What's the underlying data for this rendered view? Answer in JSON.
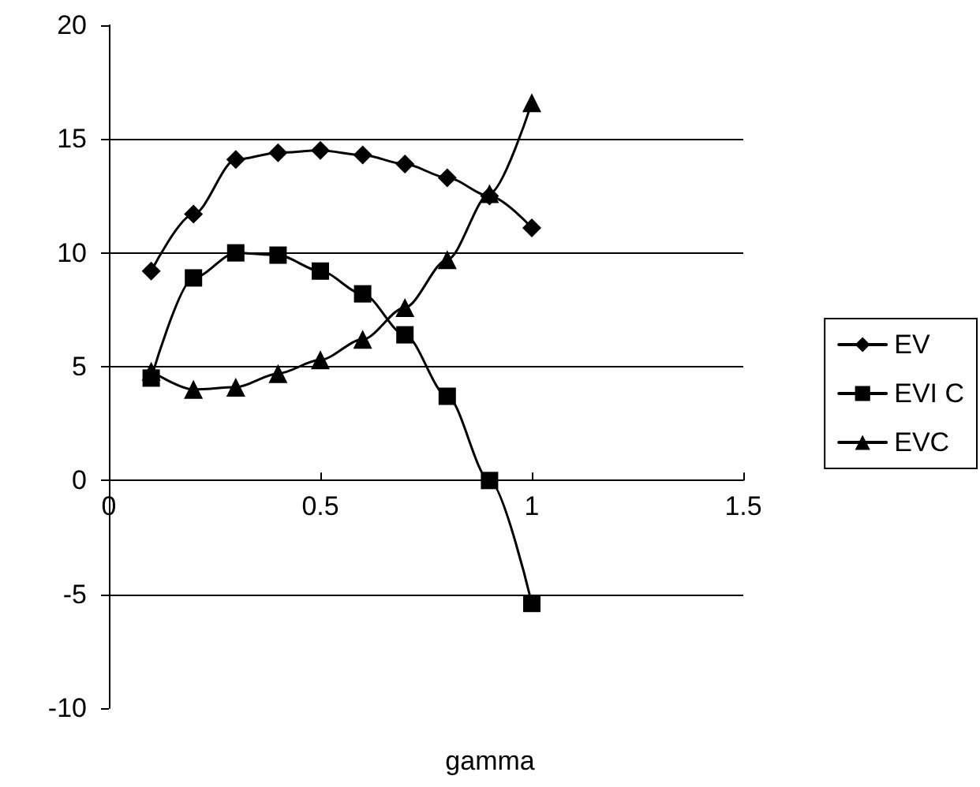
{
  "chart_data": {
    "type": "line",
    "xlabel": "gamma",
    "x": [
      0.1,
      0.2,
      0.3,
      0.4,
      0.5,
      0.6,
      0.7,
      0.8,
      0.9,
      1.0
    ],
    "series": [
      {
        "name": "EV",
        "color": "#000000",
        "marker": "diamond",
        "values": [
          9.2,
          11.7,
          14.1,
          14.4,
          14.5,
          14.3,
          13.9,
          13.3,
          12.5,
          11.1
        ]
      },
      {
        "name": "EVI C",
        "color": "#000000",
        "marker": "square",
        "values": [
          4.5,
          8.9,
          10.0,
          9.9,
          9.2,
          8.2,
          6.4,
          3.7,
          0,
          -5.4
        ]
      },
      {
        "name": "EVC",
        "color": "#000000",
        "marker": "triangle",
        "values": [
          4.8,
          4.0,
          4.1,
          4.7,
          5.3,
          6.2,
          7.6,
          9.7,
          12.6,
          16.6
        ]
      }
    ],
    "xlim": [
      0,
      1.5
    ],
    "xticks": [
      0,
      0.5,
      1,
      1.5
    ],
    "ylim": [
      -10,
      20
    ],
    "yticks": [
      -10,
      -5,
      0,
      5,
      10,
      15,
      20
    ],
    "grid": "y",
    "legend": "right",
    "line_style": "solid"
  }
}
